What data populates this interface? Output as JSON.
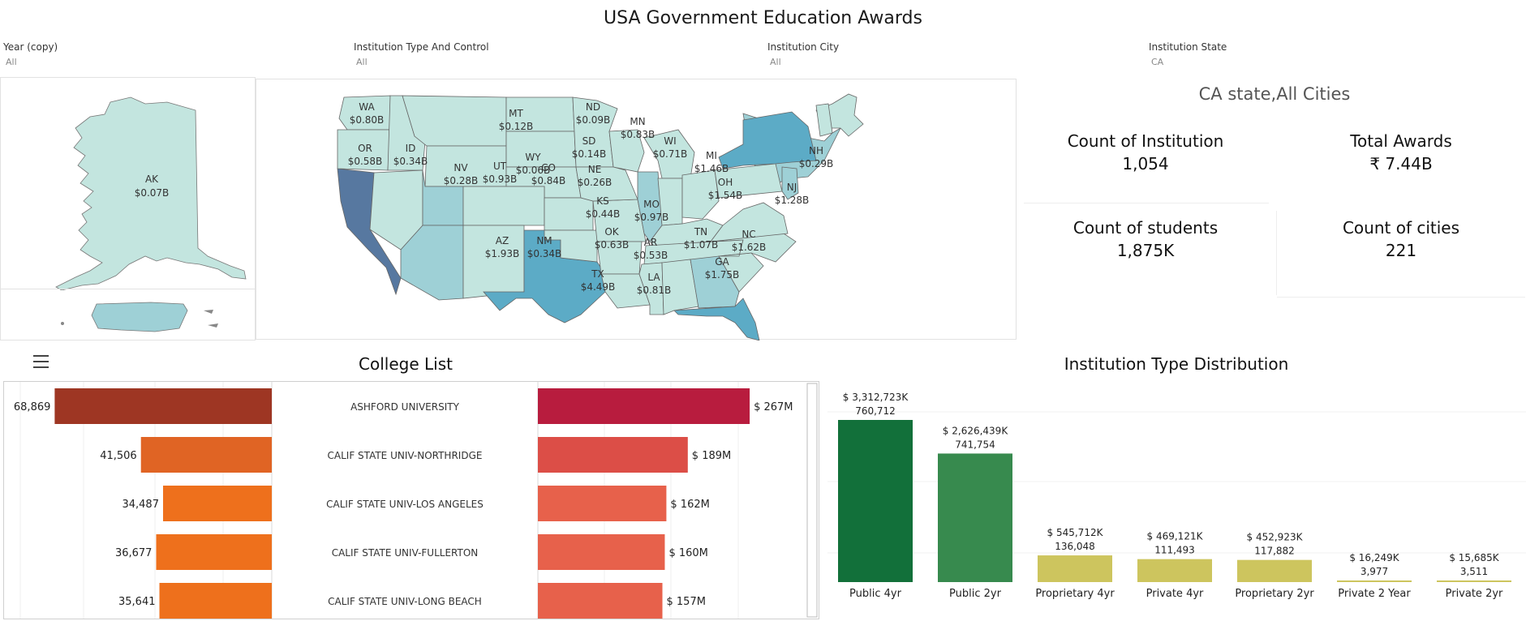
{
  "dashboard": {
    "title": "USA Government Education Awards"
  },
  "filters": [
    {
      "label": "Year (copy)",
      "value": "All"
    },
    {
      "label": "Institution Type And Control",
      "value": "All"
    },
    {
      "label": "Institution City",
      "value": "All"
    },
    {
      "label": "Institution State",
      "value": "CA"
    }
  ],
  "map": {
    "states": [
      {
        "code": "AK",
        "amount": "$0.07B"
      },
      {
        "code": "WA",
        "amount": "$0.80B"
      },
      {
        "code": "OR",
        "amount": "$0.58B"
      },
      {
        "code": "ID",
        "amount": "$0.34B"
      },
      {
        "code": "MT",
        "amount": "$0.12B"
      },
      {
        "code": "ND",
        "amount": "$0.09B"
      },
      {
        "code": "MN",
        "amount": "$0.83B"
      },
      {
        "code": "SD",
        "amount": "$0.14B"
      },
      {
        "code": "WY",
        "amount": "$0.06B"
      },
      {
        "code": "NV",
        "amount": "$0.28B"
      },
      {
        "code": "UT",
        "amount": "$0.93B"
      },
      {
        "code": "CO",
        "amount": "$0.84B"
      },
      {
        "code": "NE",
        "amount": "$0.26B"
      },
      {
        "code": "KS",
        "amount": "$0.44B"
      },
      {
        "code": "AZ",
        "amount": "$1.93B"
      },
      {
        "code": "NM",
        "amount": "$0.34B"
      },
      {
        "code": "TX",
        "amount": "$4.49B"
      },
      {
        "code": "OK",
        "amount": "$0.63B"
      },
      {
        "code": "MO",
        "amount": "$0.97B"
      },
      {
        "code": "AR",
        "amount": "$0.53B"
      },
      {
        "code": "LA",
        "amount": "$0.81B"
      },
      {
        "code": "WI",
        "amount": "$0.71B"
      },
      {
        "code": "MI",
        "amount": "$1.46B"
      },
      {
        "code": "OH",
        "amount": "$1.54B"
      },
      {
        "code": "TN",
        "amount": "$1.07B"
      },
      {
        "code": "GA",
        "amount": "$1.75B"
      },
      {
        "code": "NC",
        "amount": "$1.62B"
      },
      {
        "code": "NJ",
        "amount": "$1.28B"
      },
      {
        "code": "NH",
        "amount": "$0.29B"
      }
    ]
  },
  "kpis": {
    "heading": "CA state,All Cities",
    "items": [
      {
        "label": "Count of Institution",
        "value": "1,054"
      },
      {
        "label": "Total Awards",
        "value": "₹ 7.44B"
      },
      {
        "label": "Count of students",
        "value": "1,875K"
      },
      {
        "label": "Count of cities",
        "value": "221"
      }
    ]
  },
  "icons": {
    "menu": "hamburger-menu-icon"
  },
  "colors": {
    "students_bars": [
      "#9e3623",
      "#e06424",
      "#ee701c",
      "#ee701c",
      "#ee701c"
    ],
    "awards_bars": [
      "#b81c3e",
      "#dc4e47",
      "#e7614b",
      "#e7614b",
      "#e7614b"
    ],
    "type_bars": [
      "#12703a",
      "#378a4e",
      "#cdc55e",
      "#cdc55e",
      "#cdc55e",
      "#cdc55e",
      "#cdc55e"
    ],
    "map_light": "#c3e5df",
    "map_mid": "#9ed0d6",
    "map_dark": "#5cabc6",
    "map_ca": "#5778a0"
  },
  "chart_data": [
    {
      "type": "bar",
      "title": "College List",
      "categories": [
        "ASHFORD UNIVERSITY",
        "CALIF STATE UNIV-NORTHRIDGE",
        "CALIF STATE UNIV-LOS ANGELES",
        "CALIF STATE UNIV-FULLERTON",
        "CALIF STATE UNIV-LONG BEACH"
      ],
      "series": [
        {
          "values": [
            68869,
            41506,
            34487,
            36677,
            35641
          ],
          "labels": [
            "68,869",
            "41,506",
            "34,487",
            "36,677",
            "35,641"
          ]
        },
        {
          "values": [
            267,
            189,
            162,
            160,
            157
          ],
          "labels": [
            "$ 267M",
            "$ 189M",
            "$ 162M",
            "$ 160M",
            "$ 157M"
          ]
        }
      ]
    },
    {
      "type": "bar",
      "title": "Institution Type Distribution",
      "categories": [
        "Public 4yr",
        "Public 2yr",
        "Proprietary 4yr",
        "Private 4yr",
        "Proprietary 2yr",
        "Private 2 Year",
        "Private 2yr"
      ],
      "series": [
        {
          "values": [
            3312723,
            2626439,
            545712,
            469121,
            452923,
            16249,
            15685
          ],
          "labels": [
            "$ 3,312,723K",
            "$ 2,626,439K",
            "$ 545,712K",
            "$ 469,121K",
            "$ 452,923K",
            "$ 16,249K",
            "$ 15,685K"
          ]
        },
        {
          "values": [
            760712,
            741754,
            136048,
            111493,
            117882,
            3977,
            3511
          ],
          "labels": [
            "760,712",
            "741,754",
            "136,048",
            "111,493",
            "117,882",
            "3,977",
            "3,511"
          ]
        }
      ]
    }
  ]
}
